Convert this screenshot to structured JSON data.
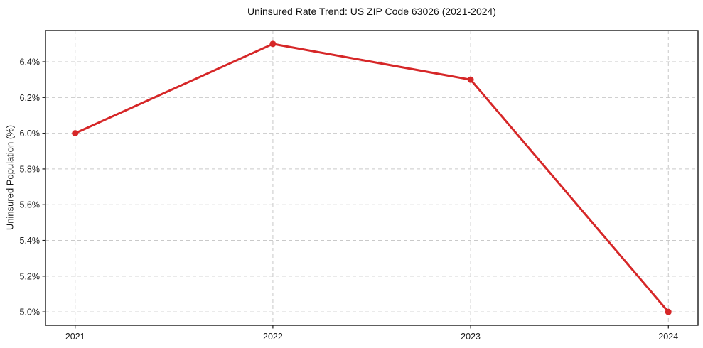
{
  "chart_data": {
    "type": "line",
    "title": "Uninsured Rate Trend: US ZIP Code 63026 (2021-2024)",
    "xlabel": "",
    "ylabel": "Uninsured Population (%)",
    "x": [
      2021,
      2022,
      2023,
      2024
    ],
    "values": [
      6.0,
      6.5,
      6.3,
      5.0
    ],
    "xtick_labels": [
      "2021",
      "2022",
      "2023",
      "2024"
    ],
    "yticks": [
      5.0,
      5.2,
      5.4,
      5.6,
      5.8,
      6.0,
      6.2,
      6.4
    ],
    "ytick_labels": [
      "5.0%",
      "5.2%",
      "5.4%",
      "5.6%",
      "5.8%",
      "6.0%",
      "6.2%",
      "6.4%"
    ],
    "xlim": [
      2020.85,
      2024.15
    ],
    "ylim": [
      4.925,
      6.575
    ],
    "grid": true,
    "legend": "none",
    "line_color": "#d62728",
    "marker": "circle",
    "grid_color": "#c9c9c9",
    "axis_color": "#1a1a1a"
  }
}
